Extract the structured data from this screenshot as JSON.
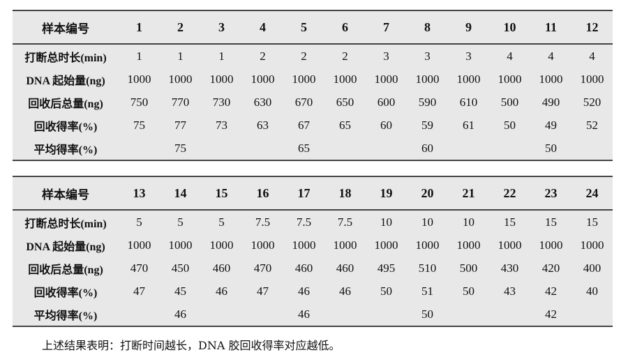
{
  "tables": [
    {
      "header_label": "样本编号",
      "samples": [
        "1",
        "2",
        "3",
        "4",
        "5",
        "6",
        "7",
        "8",
        "9",
        "10",
        "11",
        "12"
      ],
      "rows": [
        {
          "label": "打断总时长(min)",
          "values": [
            "1",
            "1",
            "1",
            "2",
            "2",
            "2",
            "3",
            "3",
            "3",
            "4",
            "4",
            "4"
          ]
        },
        {
          "label": "DNA 起始量(ng)",
          "values": [
            "1000",
            "1000",
            "1000",
            "1000",
            "1000",
            "1000",
            "1000",
            "1000",
            "1000",
            "1000",
            "1000",
            "1000"
          ]
        },
        {
          "label": "回收后总量(ng)",
          "values": [
            "750",
            "770",
            "730",
            "630",
            "670",
            "650",
            "600",
            "590",
            "610",
            "500",
            "490",
            "520"
          ]
        },
        {
          "label": "回收得率(%)",
          "values": [
            "75",
            "77",
            "73",
            "63",
            "67",
            "65",
            "60",
            "59",
            "61",
            "50",
            "49",
            "52"
          ]
        },
        {
          "label": "平均得率(%)",
          "values": [
            "",
            "75",
            "",
            "",
            "65",
            "",
            "",
            "60",
            "",
            "",
            "50",
            ""
          ]
        }
      ]
    },
    {
      "header_label": "样本编号",
      "samples": [
        "13",
        "14",
        "15",
        "16",
        "17",
        "18",
        "19",
        "20",
        "21",
        "22",
        "23",
        "24"
      ],
      "rows": [
        {
          "label": "打断总时长(min)",
          "values": [
            "5",
            "5",
            "5",
            "7.5",
            "7.5",
            "7.5",
            "10",
            "10",
            "10",
            "15",
            "15",
            "15"
          ]
        },
        {
          "label": "DNA 起始量(ng)",
          "values": [
            "1000",
            "1000",
            "1000",
            "1000",
            "1000",
            "1000",
            "1000",
            "1000",
            "1000",
            "1000",
            "1000",
            "1000"
          ]
        },
        {
          "label": "回收后总量(ng)",
          "values": [
            "470",
            "450",
            "460",
            "470",
            "460",
            "460",
            "495",
            "510",
            "500",
            "430",
            "420",
            "400"
          ]
        },
        {
          "label": "回收得率(%)",
          "values": [
            "47",
            "45",
            "46",
            "47",
            "46",
            "46",
            "50",
            "51",
            "50",
            "43",
            "42",
            "40"
          ]
        },
        {
          "label": "平均得率(%)",
          "values": [
            "",
            "46",
            "",
            "",
            "46",
            "",
            "",
            "50",
            "",
            "",
            "42",
            ""
          ]
        }
      ]
    }
  ],
  "caption": "上述结果表明：打断时间越长，DNA 胶回收得率对应越低。"
}
